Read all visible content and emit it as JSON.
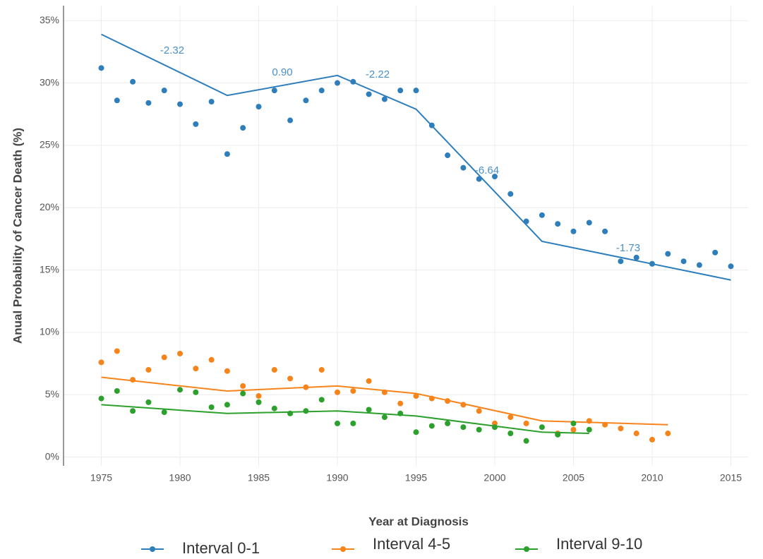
{
  "chart_data": {
    "type": "scatter",
    "x_label": "Year at Diagnosis",
    "y_label": "Anual Probability of Cancer Death (%)",
    "xlim": [
      1972.6,
      2016.1
    ],
    "ylim": [
      -0.7,
      36.2
    ],
    "xticks": [
      1975,
      1980,
      1985,
      1990,
      1995,
      2000,
      2005,
      2010,
      2015
    ],
    "yticks": [
      {
        "value": 0,
        "label": "0%"
      },
      {
        "value": 5,
        "label": "5%"
      },
      {
        "value": 10,
        "label": "10%"
      },
      {
        "value": 15,
        "label": "15%"
      },
      {
        "value": 20,
        "label": "20%"
      },
      {
        "value": 25,
        "label": "25%"
      },
      {
        "value": 30,
        "label": "30%"
      },
      {
        "value": 35,
        "label": "35%"
      }
    ],
    "grid": true,
    "legend": "bottom",
    "annotations": [
      "-2.32",
      "0.90",
      "-2.22",
      "-6.64",
      "-1.73"
    ],
    "series": [
      {
        "name": "Interval 0-1",
        "color": "#2e7ebc",
        "x": [
          1975,
          1976,
          1977,
          1978,
          1979,
          1980,
          1981,
          1982,
          1983,
          1984,
          1985,
          1986,
          1987,
          1988,
          1989,
          1990,
          1991,
          1992,
          1993,
          1994,
          1995,
          1996,
          1997,
          1998,
          1999,
          2000,
          2001,
          2002,
          2003,
          2004,
          2005,
          2006,
          2007,
          2008,
          2009,
          2010,
          2011,
          2012,
          2013,
          2014,
          2015
        ],
        "values": [
          31.2,
          28.6,
          30.1,
          28.4,
          29.4,
          28.3,
          26.7,
          28.5,
          24.3,
          26.4,
          28.1,
          29.4,
          27.0,
          28.6,
          29.4,
          30.0,
          30.1,
          29.1,
          28.7,
          29.4,
          29.4,
          26.6,
          24.2,
          23.2,
          22.3,
          22.5,
          21.1,
          18.9,
          19.4,
          18.7,
          18.1,
          18.8,
          18.1,
          15.7,
          16.0,
          15.5,
          16.3,
          15.7,
          15.4,
          16.4,
          15.3
        ],
        "fit_x": [
          1975,
          1983,
          1990,
          1995,
          2003,
          2015
        ],
        "fit_values": [
          33.9,
          29.0,
          30.6,
          27.9,
          17.3,
          14.2
        ]
      },
      {
        "name": "Interval 4-5",
        "color": "#f7841b",
        "x": [
          1975,
          1976,
          1977,
          1978,
          1979,
          1980,
          1981,
          1982,
          1983,
          1984,
          1985,
          1986,
          1987,
          1988,
          1989,
          1990,
          1991,
          1992,
          1993,
          1994,
          1995,
          1996,
          1997,
          1998,
          1999,
          2000,
          2001,
          2002,
          2004,
          2005,
          2006,
          2007,
          2008,
          2009,
          2010,
          2011
        ],
        "values": [
          7.6,
          8.5,
          6.2,
          7.0,
          8.0,
          8.3,
          7.1,
          7.8,
          6.9,
          5.7,
          4.9,
          7.0,
          6.3,
          5.6,
          7.0,
          5.2,
          5.3,
          6.1,
          5.2,
          4.3,
          4.9,
          4.7,
          4.5,
          4.2,
          3.7,
          2.7,
          3.2,
          2.7,
          1.9,
          2.2,
          2.9,
          2.6,
          2.3,
          1.9,
          1.4,
          1.9
        ],
        "fit_x": [
          1975,
          1983,
          1990,
          1995,
          2003,
          2011
        ],
        "fit_values": [
          6.4,
          5.3,
          5.7,
          5.1,
          2.9,
          2.6
        ]
      },
      {
        "name": "Interval 9-10",
        "color": "#2ca02c",
        "x": [
          1975,
          1976,
          1977,
          1978,
          1979,
          1980,
          1981,
          1982,
          1983,
          1984,
          1985,
          1986,
          1987,
          1988,
          1989,
          1990,
          1991,
          1992,
          1993,
          1994,
          1995,
          1996,
          1997,
          1998,
          1999,
          2000,
          2001,
          2002,
          2003,
          2004,
          2005,
          2006
        ],
        "values": [
          4.7,
          5.3,
          3.7,
          4.4,
          3.6,
          5.4,
          5.2,
          4.0,
          4.2,
          5.1,
          4.4,
          3.9,
          3.5,
          3.7,
          4.6,
          2.7,
          2.7,
          3.8,
          3.2,
          3.5,
          2.0,
          2.5,
          2.7,
          2.4,
          2.2,
          2.4,
          1.9,
          1.3,
          2.4,
          1.8,
          2.7,
          2.2
        ],
        "fit_x": [
          1975,
          1983,
          1990,
          1995,
          2003,
          2006
        ],
        "fit_values": [
          4.2,
          3.5,
          3.7,
          3.3,
          2.0,
          1.9
        ]
      }
    ]
  }
}
